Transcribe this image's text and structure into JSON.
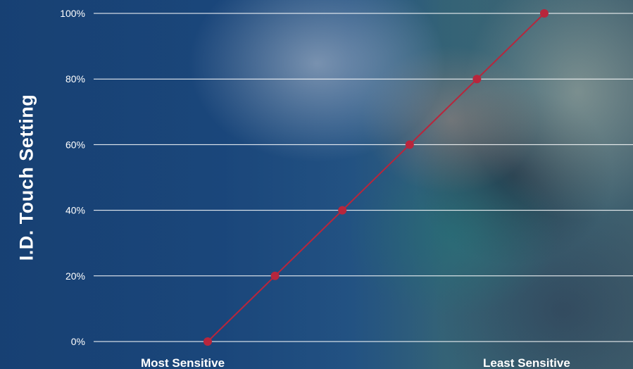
{
  "chart_data": {
    "type": "line",
    "xlabel": "",
    "ylabel": "I.D. Touch Setting",
    "x_end_labels": [
      "Most Sensitive",
      "Least Sensitive"
    ],
    "x": [
      1,
      2,
      3,
      4,
      5,
      6
    ],
    "series": [
      {
        "values": [
          0,
          20,
          40,
          60,
          80,
          100
        ]
      }
    ],
    "ylim": [
      0,
      100
    ],
    "yticks": [
      0,
      20,
      40,
      60,
      80,
      100
    ],
    "ytick_labels": [
      "0%",
      "20%",
      "40%",
      "60%",
      "80%",
      "100%"
    ],
    "grid": true,
    "legend": "none"
  },
  "colors": {
    "line": "#b8263c",
    "marker": "#b8263c",
    "grid": "#ffffff",
    "text": "#ffffff"
  }
}
